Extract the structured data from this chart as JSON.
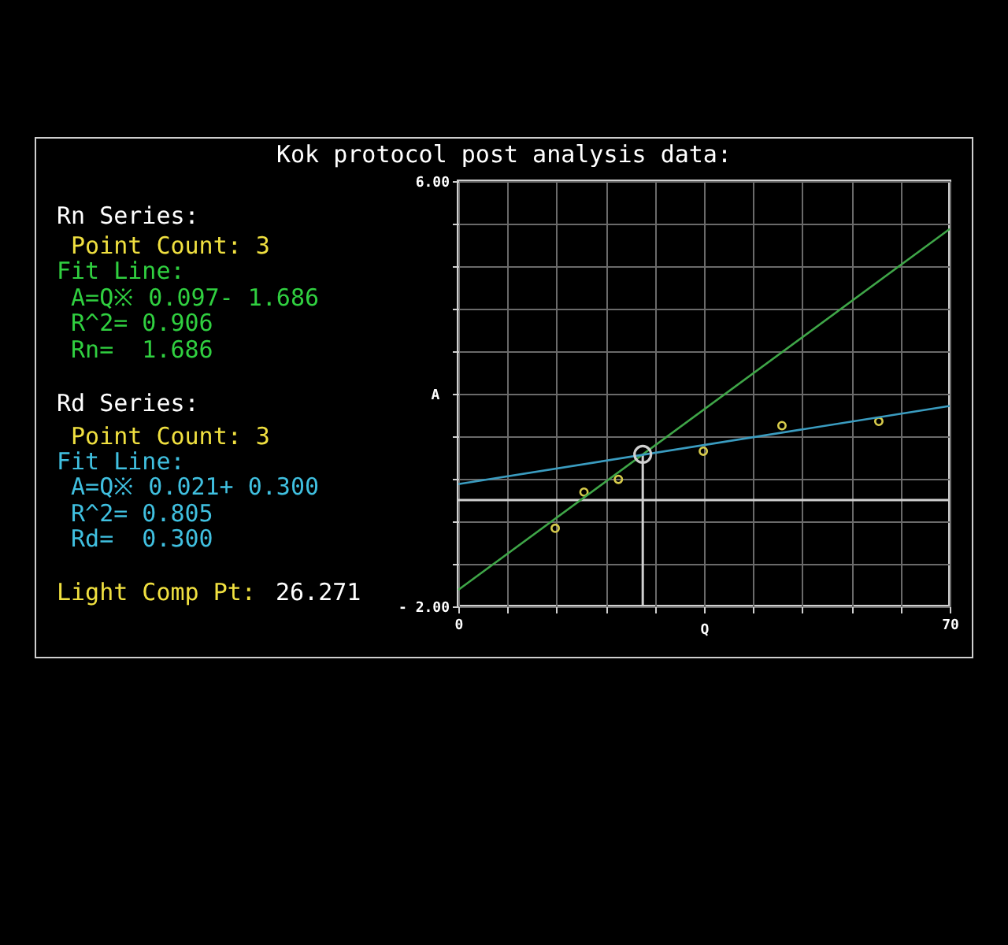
{
  "chart_data": {
    "type": "scatter",
    "title": "Kok protocol post analysis data:",
    "xlabel": "Q",
    "ylabel": "A",
    "annotations": [
      "Rn Series:",
      " Point Count: 3",
      "Fit Line:",
      " A=Q※ 0.097- 1.686",
      " R^2= 0.906",
      " Rn=  1.686",
      "Rd Series:",
      " Point Count: 3",
      "Fit Line:",
      " A=Q※ 0.021+ 0.300",
      " R^2= 0.805",
      " Rd=  0.300",
      "Light Comp Pt:",
      "26.271"
    ],
    "series": [
      {
        "color": "#d8cc4c",
        "marker": "circle",
        "x": [
          13.8,
          17.9,
          22.8
        ],
        "values": [
          -0.53,
          0.15,
          0.39
        ]
      },
      {
        "color": "#d8cc4c",
        "marker": "circle",
        "x": [
          34.9,
          46.1,
          59.9
        ],
        "values": [
          0.92,
          1.4,
          1.48
        ]
      },
      {
        "type": "line",
        "color": "#3fa648",
        "x": [
          0,
          70
        ],
        "values": [
          -1.69,
          5.1
        ]
      },
      {
        "type": "line",
        "color": "#3a9cc0",
        "x": [
          0,
          70
        ],
        "values": [
          0.3,
          1.77
        ]
      },
      {
        "color": "#d0d0d0",
        "marker": "circle",
        "x": [
          26.271
        ],
        "values": [
          0.86
        ]
      }
    ],
    "xlim": [
      0,
      70
    ],
    "ylim": [
      -2,
      6
    ],
    "xticks": [
      0,
      {
        "value": 7,
        "label": null
      },
      {
        "value": 14,
        "label": null
      },
      {
        "value": 21,
        "label": null
      },
      {
        "value": 28,
        "label": null
      },
      {
        "value": 35,
        "label": null
      },
      {
        "value": 42,
        "label": null
      },
      {
        "value": 49,
        "label": null
      },
      {
        "value": 56,
        "label": null
      },
      {
        "value": 63,
        "label": null
      },
      70
    ],
    "yticks": [
      {
        "value": -2,
        "label": "-   2.00"
      },
      {
        "value": -1.2,
        "label": null
      },
      {
        "value": -0.4,
        "label": null
      },
      {
        "value": 0.4,
        "label": null
      },
      {
        "value": 1.2,
        "label": null
      },
      {
        "value": 2,
        "label": null
      },
      {
        "value": 2.8,
        "label": null
      },
      {
        "value": 3.6,
        "label": null
      },
      {
        "value": 4.4,
        "label": null
      },
      {
        "value": 5.2,
        "label": null
      },
      {
        "value": 6,
        "label": "6.00"
      }
    ],
    "grid": true,
    "ref_lines": [
      {
        "axis": "y",
        "value": 0,
        "color": "#d0d0d0"
      },
      {
        "axis": "x",
        "value": 26.271,
        "color": "#d0d0d0"
      }
    ]
  }
}
